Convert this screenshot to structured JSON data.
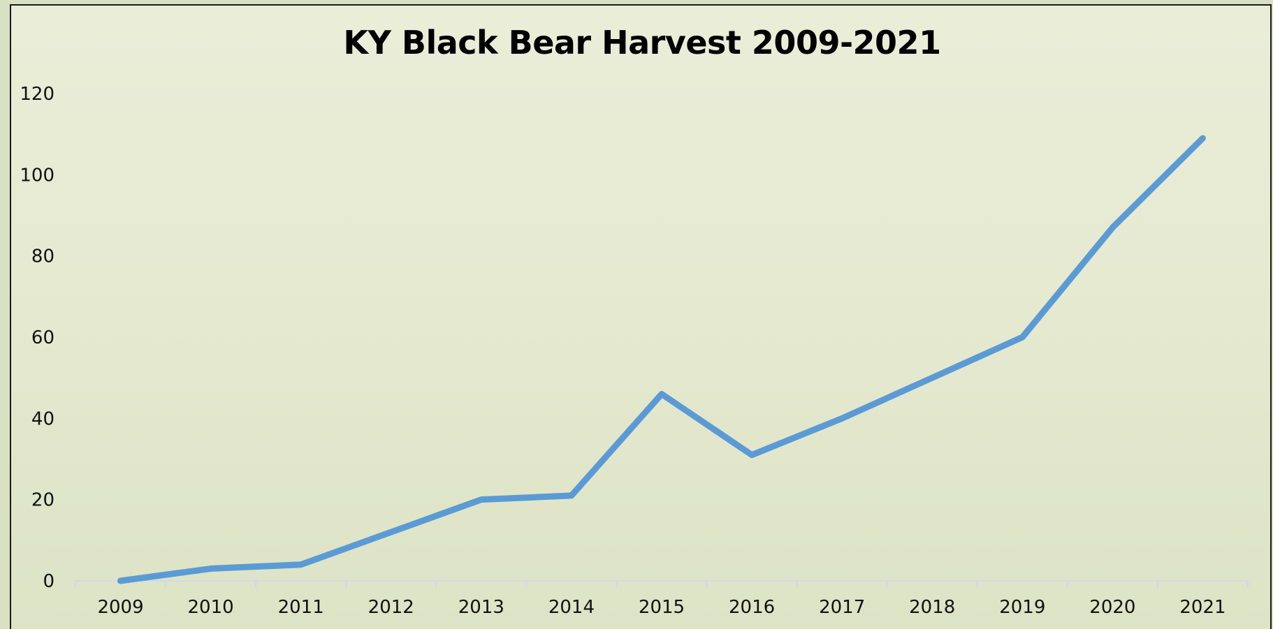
{
  "chart_data": {
    "type": "line",
    "title": "KY Black Bear Harvest 2009-2021",
    "xlabel": "",
    "ylabel": "",
    "categories": [
      "2009",
      "2010",
      "2011",
      "2012",
      "2013",
      "2014",
      "2015",
      "2016",
      "2017",
      "2018",
      "2019",
      "2020",
      "2021"
    ],
    "series": [
      {
        "values": [
          0,
          3,
          4,
          12,
          20,
          21,
          46,
          31,
          40,
          50,
          60,
          87,
          109
        ]
      }
    ],
    "ylim": [
      0,
      120
    ],
    "yticks": [
      0,
      20,
      40,
      60,
      80,
      100,
      120
    ],
    "grid": false,
    "legend": "none",
    "colors": {
      "line": "#5b9bd5",
      "axis": "#d0d8ee"
    }
  }
}
